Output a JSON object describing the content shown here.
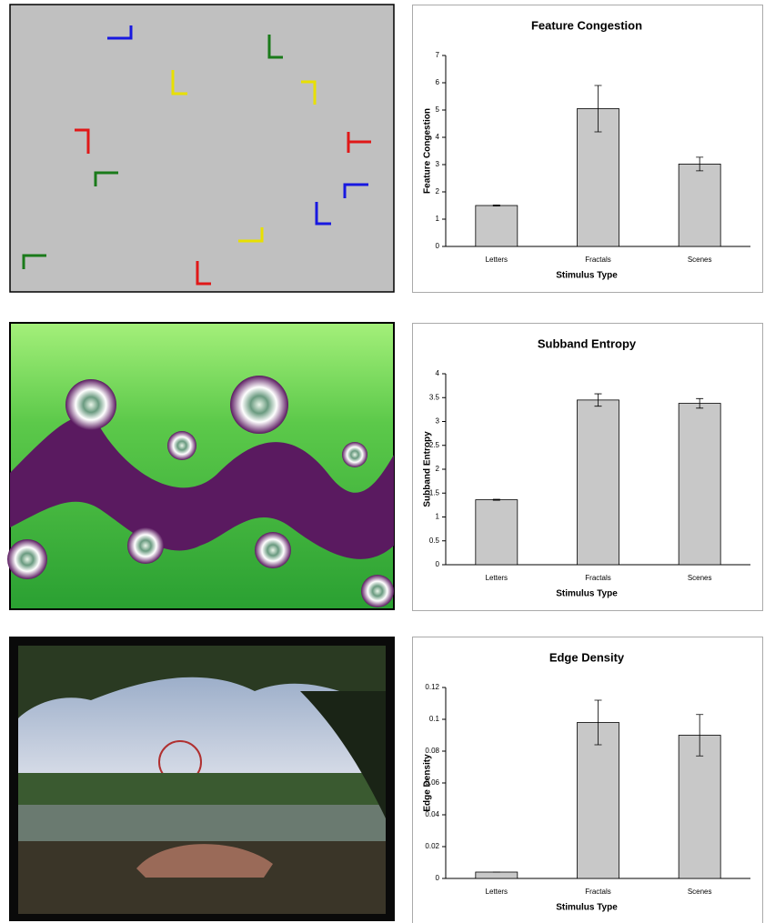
{
  "chart_data": [
    {
      "type": "bar",
      "title": "Feature Congestion",
      "x_label": "Stimulus Type",
      "y_label": "Feature Congestion",
      "categories": [
        "Letters",
        "Fractals",
        "Scenes"
      ],
      "values": [
        1.5,
        5.05,
        3.02
      ],
      "errors": [
        0.02,
        0.85,
        0.25
      ],
      "color": "#c8c8c8",
      "ylim": [
        0,
        7
      ],
      "yticks": [
        0,
        1,
        2,
        3,
        4,
        5,
        6,
        7
      ]
    },
    {
      "type": "bar",
      "title": "Subband Entropy",
      "x_label": "Stimulus Type",
      "y_label": "Subband Entropy",
      "categories": [
        "Letters",
        "Fractals",
        "Scenes"
      ],
      "values": [
        1.36,
        3.45,
        3.38
      ],
      "errors": [
        0.01,
        0.13,
        0.1
      ],
      "color": "#c8c8c8",
      "ylim": [
        0,
        4
      ],
      "yticks": [
        0,
        0.5,
        1,
        1.5,
        2,
        2.5,
        3,
        3.5,
        4
      ]
    },
    {
      "type": "bar",
      "title": "Edge Density",
      "x_label": "Stimulus Type",
      "y_label": "Edge Density",
      "categories": [
        "Letters",
        "Fractals",
        "Scenes"
      ],
      "values": [
        0.004,
        0.098,
        0.09
      ],
      "errors": [
        0,
        0.014,
        0.013
      ],
      "color": "#c8c8c8",
      "ylim": [
        0,
        0.12
      ],
      "yticks": [
        0,
        0.02,
        0.04,
        0.06,
        0.08,
        0.1,
        0.12
      ]
    }
  ]
}
